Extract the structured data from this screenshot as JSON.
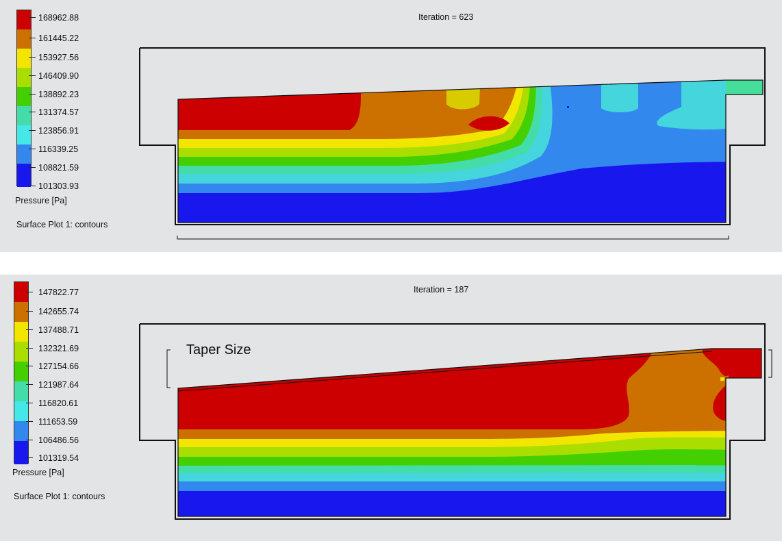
{
  "colors": [
    "#cc0000",
    "#cc7000",
    "#f2e600",
    "#aadd00",
    "#44d000",
    "#44ddaa",
    "#44e8e8",
    "#3388ee",
    "#1818ee"
  ],
  "panels": [
    {
      "iteration": "Iteration = 623",
      "legend": {
        "title": "Pressure [Pa]",
        "plot_name": "Surface Plot 1: contours",
        "ticks": [
          "168962.88",
          "161445.22",
          "153927.56",
          "146409.90",
          "138892.23",
          "131374.57",
          "123856.91",
          "116339.25",
          "108821.59",
          "101303.93"
        ]
      }
    },
    {
      "iteration": "Iteration = 187",
      "annotation": "Taper Size",
      "legend": {
        "title": "Pressure [Pa]",
        "plot_name": "Surface Plot 1: contours",
        "ticks": [
          "147822.77",
          "142655.74",
          "137488.71",
          "132321.69",
          "127154.66",
          "121987.64",
          "116820.61",
          "111653.59",
          "106486.56",
          "101319.54"
        ]
      }
    }
  ]
}
